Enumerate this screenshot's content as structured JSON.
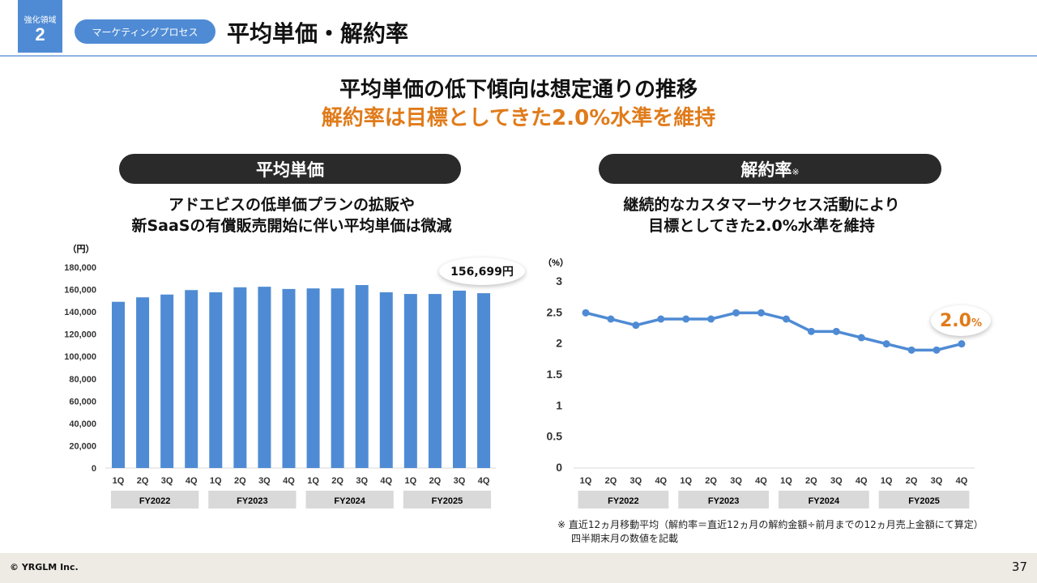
{
  "header": {
    "badge_label": "強化領域",
    "badge_number": "2",
    "category_pill": "マーケティングプロセス",
    "title": "平均単価・解約率"
  },
  "headline": {
    "line1": "平均単価の低下傾向は想定通りの推移",
    "line2": "解約率は目標としてきた2.0%水準を維持",
    "accent_color": "#e07b1a"
  },
  "left_panel": {
    "section_label": "平均単価",
    "subtitle_line1": "アドエビスの低単価プランの拡販や",
    "subtitle_line2": "新SaaSの有償販売開始に伴い平均単価は微減",
    "callout": "156,699円"
  },
  "right_panel": {
    "section_label": "解約率",
    "section_mark": "※",
    "subtitle_line1": "継続的なカスタマーサクセス活動により",
    "subtitle_line2": "目標としてきた2.0%水準を維持",
    "callout_value": "2.0",
    "callout_unit": "%",
    "footnote_line1": "※ 直近12ヵ月移動平均（解約率＝直近12ヵ月の解約金額÷前月までの12ヵ月売上金額にて算定）",
    "footnote_line2": "四半期末月の数値を記載"
  },
  "footer": {
    "copyright": "© YRGLM Inc.",
    "page_number": "37"
  },
  "chart_data": [
    {
      "type": "bar",
      "title": "平均単価",
      "ylabel": "（円）",
      "ylim": [
        0,
        180000
      ],
      "yticks": [
        "0",
        "20,000",
        "40,000",
        "60,000",
        "80,000",
        "100,000",
        "120,000",
        "140,000",
        "160,000",
        "180,000"
      ],
      "categories": [
        "1Q",
        "2Q",
        "3Q",
        "4Q",
        "1Q",
        "2Q",
        "3Q",
        "4Q",
        "1Q",
        "2Q",
        "3Q",
        "4Q",
        "1Q",
        "2Q",
        "3Q",
        "4Q"
      ],
      "groups": [
        "FY2022",
        "FY2023",
        "FY2024",
        "FY2025"
      ],
      "values": [
        149000,
        153000,
        155500,
        159500,
        157500,
        162000,
        162500,
        160500,
        161000,
        161000,
        164000,
        157500,
        156000,
        156000,
        159000,
        156699
      ],
      "color": "#4f8bd4"
    },
    {
      "type": "line",
      "title": "解約率",
      "ylabel": "（%）",
      "ylim": [
        0,
        3
      ],
      "yticks": [
        "0",
        "0.5",
        "1",
        "1.5",
        "2",
        "2.5",
        "3"
      ],
      "categories": [
        "1Q",
        "2Q",
        "3Q",
        "4Q",
        "1Q",
        "2Q",
        "3Q",
        "4Q",
        "1Q",
        "2Q",
        "3Q",
        "4Q",
        "1Q",
        "2Q",
        "3Q",
        "4Q"
      ],
      "groups": [
        "FY2022",
        "FY2023",
        "FY2024",
        "FY2025"
      ],
      "values": [
        2.5,
        2.4,
        2.3,
        2.4,
        2.4,
        2.4,
        2.5,
        2.5,
        2.4,
        2.2,
        2.2,
        2.1,
        2.0,
        1.9,
        1.9,
        2.0
      ],
      "color": "#4f8bd4"
    }
  ]
}
